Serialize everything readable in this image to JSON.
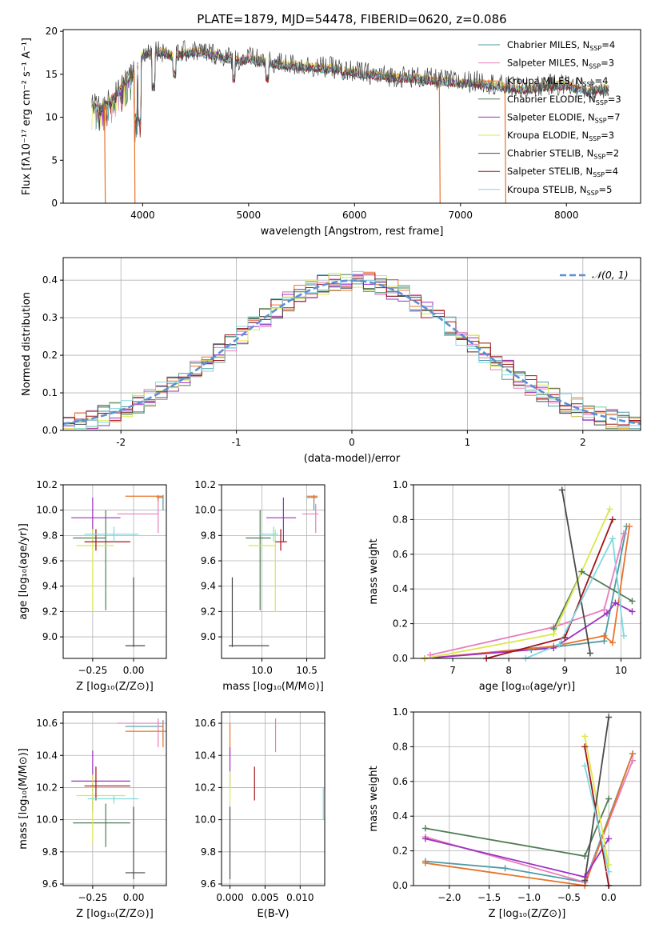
{
  "figure_title": "PLATE=1879, MJD=54478, FIBERID=0620, z=0.086",
  "colors": {
    "chabrier_miles": "#4d9ba6",
    "salpeter_miles": "#e87dbd",
    "kroupa_miles": "#e8732a",
    "chabrier_elodie": "#4f7d55",
    "salpeter_elodie": "#9b2fc2",
    "kroupa_elodie": "#dbe84a",
    "chabrier_stelib": "#4a4a4a",
    "salpeter_stelib": "#a1141b",
    "kroupa_stelib": "#7fd8e0",
    "gaussian": "#5b8fd6"
  },
  "chart_data": [
    {
      "id": "spectrum",
      "type": "line",
      "xlabel": "wavelength [Angstrom, rest frame]",
      "ylabel": "Flux [fλ10⁻¹⁷ erg cm⁻² s⁻¹ A⁻¹]",
      "xlim": [
        3250,
        8700
      ],
      "ylim": [
        0,
        20.2
      ],
      "xticks": [
        4000,
        5000,
        6000,
        7000,
        8000
      ],
      "yticks": [
        0,
        5,
        10,
        15,
        20
      ],
      "grid": false,
      "legend_position": "top-right",
      "legend": [
        {
          "name": "Chabrier MILES, N",
          "sub": "SSP",
          "suffix": "=4",
          "color": "chabrier_miles"
        },
        {
          "name": "Salpeter MILES, N",
          "sub": "SSP",
          "suffix": "=3",
          "color": "salpeter_miles"
        },
        {
          "name": "Kroupa MILES, N",
          "sub": "SSP",
          "suffix": "=4",
          "color": "kroupa_miles"
        },
        {
          "name": "Chabrier ELODIE, N",
          "sub": "SSP",
          "suffix": "=3",
          "color": "chabrier_elodie"
        },
        {
          "name": "Salpeter ELODIE, N",
          "sub": "SSP",
          "suffix": "=7",
          "color": "salpeter_elodie"
        },
        {
          "name": "Kroupa ELODIE, N",
          "sub": "SSP",
          "suffix": "=3",
          "color": "kroupa_elodie"
        },
        {
          "name": "Chabrier STELIB, N",
          "sub": "SSP",
          "suffix": "=2",
          "color": "chabrier_stelib"
        },
        {
          "name": "Salpeter STELIB, N",
          "sub": "SSP",
          "suffix": "=4",
          "color": "salpeter_stelib"
        },
        {
          "name": "Kroupa STELIB, N",
          "sub": "SSP",
          "suffix": "=5",
          "color": "kroupa_stelib"
        }
      ],
      "continuum": [
        [
          3520,
          11.5
        ],
        [
          3600,
          11.0
        ],
        [
          3700,
          12.0
        ],
        [
          3800,
          13.5
        ],
        [
          3900,
          15.0
        ],
        [
          3950,
          16.0
        ],
        [
          4000,
          17.2
        ],
        [
          4100,
          17.8
        ],
        [
          4200,
          17.5
        ],
        [
          4300,
          17.0
        ],
        [
          4400,
          17.5
        ],
        [
          4500,
          17.6
        ],
        [
          4700,
          17.2
        ],
        [
          4900,
          16.5
        ],
        [
          5000,
          16.8
        ],
        [
          5200,
          16.3
        ],
        [
          5400,
          16.0
        ],
        [
          5600,
          15.8
        ],
        [
          5800,
          15.6
        ],
        [
          6000,
          15.2
        ],
        [
          6200,
          14.8
        ],
        [
          6400,
          14.6
        ],
        [
          6600,
          14.5
        ],
        [
          6800,
          14.2
        ],
        [
          7000,
          14.0
        ],
        [
          7200,
          14.0
        ],
        [
          7400,
          13.5
        ],
        [
          7600,
          13.2
        ],
        [
          7800,
          13.6
        ],
        [
          8000,
          13.7
        ],
        [
          8200,
          13.0
        ],
        [
          8400,
          13.4
        ]
      ],
      "absorptions": [
        [
          3934,
          9.5
        ],
        [
          3969,
          9.0
        ],
        [
          4101,
          13.0
        ],
        [
          4300,
          14.5
        ],
        [
          4861,
          14.0
        ],
        [
          5175,
          14.0
        ],
        [
          5893,
          14.3
        ]
      ],
      "glitches": [
        [
          3640,
          0
        ],
        [
          3920,
          0
        ],
        [
          6800,
          0
        ],
        [
          7420,
          0
        ]
      ]
    },
    {
      "id": "residuals",
      "type": "step",
      "xlabel": "(data-model)/error",
      "ylabel": "Normed distribution",
      "xlim": [
        -2.5,
        2.5
      ],
      "ylim": [
        0,
        0.46
      ],
      "xticks": [
        -2,
        -1,
        0,
        1,
        2
      ],
      "yticks": [
        0.0,
        0.1,
        0.2,
        0.3,
        0.4
      ],
      "grid": true,
      "legend_position": "top-right",
      "legend_label": "𝒩(0, 1)",
      "bin_width": 0.1
    },
    {
      "id": "age_vs_Z",
      "type": "errorbar",
      "xlabel": "Z [log₁₀(Z/Z⊙)]",
      "ylabel": "age  [log₁₀(age/yr)]",
      "xlim": [
        -0.43,
        0.2
      ],
      "ylim": [
        8.83,
        10.2
      ],
      "xticks": [
        -0.25,
        0.0
      ],
      "xticklabels": [
        "−0.25",
        "0.00"
      ],
      "yticks": [
        9.0,
        9.2,
        9.4,
        9.6,
        9.8,
        10.0,
        10.2
      ],
      "grid": true,
      "points": [
        {
          "c": "chabrier_miles",
          "x": 0.18,
          "xl": 0.14,
          "xr": 0.18,
          "y": 10.1,
          "yl": 10.0,
          "yh": 10.12
        },
        {
          "c": "salpeter_miles",
          "x": 0.15,
          "xl": -0.1,
          "xr": 0.15,
          "y": 9.97,
          "yl": 9.82,
          "yh": 10.1
        },
        {
          "c": "kroupa_miles",
          "x": 0.15,
          "xl": -0.05,
          "xr": 0.18,
          "y": 10.11,
          "yl": 10.07,
          "yh": 10.12
        },
        {
          "c": "chabrier_elodie",
          "x": -0.17,
          "xl": -0.37,
          "xr": -0.17,
          "y": 9.78,
          "yl": 9.21,
          "yh": 10.0
        },
        {
          "c": "salpeter_elodie",
          "x": -0.25,
          "xl": -0.38,
          "xr": -0.08,
          "y": 9.94,
          "yl": 9.75,
          "yh": 10.1
        },
        {
          "c": "kroupa_elodie",
          "x": -0.25,
          "xl": -0.35,
          "xr": -0.12,
          "y": 9.72,
          "yl": 9.2,
          "yh": 9.85
        },
        {
          "c": "chabrier_stelib",
          "x": 0.0,
          "xl": -0.05,
          "xr": 0.07,
          "y": 8.93,
          "yl": 8.92,
          "yh": 9.47
        },
        {
          "c": "salpeter_stelib",
          "x": -0.23,
          "xl": -0.3,
          "xr": -0.02,
          "y": 9.75,
          "yl": 9.68,
          "yh": 9.85
        },
        {
          "c": "kroupa_stelib",
          "x": -0.12,
          "xl": -0.3,
          "xr": 0.03,
          "y": 9.81,
          "yl": 9.75,
          "yh": 9.87
        }
      ]
    },
    {
      "id": "age_vs_mass",
      "type": "errorbar",
      "xlabel": "mass [log₁₀(M/M⊙)]",
      "ylabel": "",
      "xlim": [
        9.55,
        10.7
      ],
      "ylim": [
        8.83,
        10.2
      ],
      "xticks": [
        10.0,
        10.5
      ],
      "xticklabels": [
        "10.0",
        "10.5"
      ],
      "yticks": [
        9.0,
        9.2,
        9.4,
        9.6,
        9.8,
        10.0,
        10.2
      ],
      "grid": true,
      "points": [
        {
          "c": "chabrier_miles",
          "x": 10.58,
          "xl": 10.5,
          "xr": 10.62,
          "y": 10.1,
          "yl": 10.0,
          "yh": 10.12
        },
        {
          "c": "salpeter_miles",
          "x": 10.6,
          "xl": 10.45,
          "xr": 10.63,
          "y": 9.97,
          "yl": 9.82,
          "yh": 10.05
        },
        {
          "c": "kroupa_miles",
          "x": 10.58,
          "xl": 10.5,
          "xr": 10.62,
          "y": 10.11,
          "yl": 10.07,
          "yh": 10.12
        },
        {
          "c": "chabrier_elodie",
          "x": 9.98,
          "xl": 9.82,
          "xr": 10.1,
          "y": 9.78,
          "yl": 9.21,
          "yh": 10.0
        },
        {
          "c": "salpeter_elodie",
          "x": 10.24,
          "xl": 10.05,
          "xr": 10.38,
          "y": 9.94,
          "yl": 9.75,
          "yh": 10.1
        },
        {
          "c": "kroupa_elodie",
          "x": 10.15,
          "xl": 9.85,
          "xr": 10.15,
          "y": 9.72,
          "yl": 9.2,
          "yh": 9.85
        },
        {
          "c": "chabrier_stelib",
          "x": 9.67,
          "xl": 9.63,
          "xr": 10.08,
          "y": 8.93,
          "yl": 8.92,
          "yh": 9.47
        },
        {
          "c": "salpeter_stelib",
          "x": 10.21,
          "xl": 10.15,
          "xr": 10.28,
          "y": 9.75,
          "yl": 9.68,
          "yh": 9.85
        },
        {
          "c": "kroupa_stelib",
          "x": 10.13,
          "xl": 9.98,
          "xr": 10.18,
          "y": 9.81,
          "yl": 9.75,
          "yh": 9.87
        }
      ]
    },
    {
      "id": "weight_vs_age",
      "type": "line",
      "xlabel": "age  [log₁₀(age/yr)]",
      "ylabel": "mass weight",
      "xlim": [
        6.3,
        10.35
      ],
      "ylim": [
        0,
        1.0
      ],
      "xticks": [
        7,
        8,
        9,
        10
      ],
      "yticks": [
        0.0,
        0.2,
        0.4,
        0.6,
        0.8,
        1.0
      ],
      "grid": true,
      "series": [
        {
          "c": "chabrier_miles",
          "x": [
            8.4,
            9.7,
            10.1
          ],
          "y": [
            0.05,
            0.1,
            0.76
          ]
        },
        {
          "c": "salpeter_miles",
          "x": [
            6.6,
            8.8,
            9.7,
            10.05
          ],
          "y": [
            0.02,
            0.18,
            0.28,
            0.72
          ]
        },
        {
          "c": "kroupa_miles",
          "x": [
            6.5,
            8.8,
            9.7,
            9.85,
            10.15
          ],
          "y": [
            0.0,
            0.07,
            0.13,
            0.09,
            0.76
          ]
        },
        {
          "c": "chabrier_elodie",
          "x": [
            8.8,
            9.3,
            10.2
          ],
          "y": [
            0.17,
            0.5,
            0.33
          ]
        },
        {
          "c": "salpeter_elodie",
          "x": [
            6.5,
            8.8,
            9.75,
            9.9,
            10.2
          ],
          "y": [
            0.0,
            0.06,
            0.26,
            0.32,
            0.27
          ]
        },
        {
          "c": "kroupa_elodie",
          "x": [
            6.5,
            8.8,
            9.8
          ],
          "y": [
            0.0,
            0.14,
            0.86
          ]
        },
        {
          "c": "chabrier_stelib",
          "x": [
            8.95,
            9.45
          ],
          "y": [
            0.97,
            0.03
          ]
        },
        {
          "c": "salpeter_stelib",
          "x": [
            7.6,
            9.0,
            9.85
          ],
          "y": [
            0.0,
            0.12,
            0.8
          ]
        },
        {
          "c": "kroupa_stelib",
          "x": [
            8.3,
            8.9,
            9.85,
            10.05
          ],
          "y": [
            0.0,
            0.08,
            0.69,
            0.13
          ]
        }
      ]
    },
    {
      "id": "mass_vs_Z",
      "type": "errorbar",
      "xlabel": "Z [log₁₀(Z/Z⊙)]",
      "ylabel": "mass [log₁₀(M/M⊙)]",
      "xlim": [
        -0.43,
        0.2
      ],
      "ylim": [
        9.59,
        10.67
      ],
      "xticks": [
        -0.25,
        0.0
      ],
      "xticklabels": [
        "−0.25",
        "0.00"
      ],
      "yticks": [
        9.6,
        9.8,
        10.0,
        10.2,
        10.4,
        10.6
      ],
      "grid": true,
      "points": [
        {
          "c": "chabrier_miles",
          "x": 0.18,
          "xl": -0.05,
          "xr": 0.18,
          "y": 10.58,
          "yl": 10.5,
          "yh": 10.62
        },
        {
          "c": "salpeter_miles",
          "x": 0.15,
          "xl": -0.1,
          "xr": 0.18,
          "y": 10.6,
          "yl": 10.45,
          "yh": 10.63
        },
        {
          "c": "kroupa_miles",
          "x": 0.18,
          "xl": -0.05,
          "xr": 0.2,
          "y": 10.55,
          "yl": 10.45,
          "yh": 10.6
        },
        {
          "c": "chabrier_elodie",
          "x": -0.17,
          "xl": -0.37,
          "xr": -0.02,
          "y": 9.98,
          "yl": 9.83,
          "yh": 10.1
        },
        {
          "c": "salpeter_elodie",
          "x": -0.25,
          "xl": -0.38,
          "xr": -0.02,
          "y": 10.24,
          "yl": 10.05,
          "yh": 10.43
        },
        {
          "c": "kroupa_elodie",
          "x": -0.25,
          "xl": -0.35,
          "xr": -0.05,
          "y": 10.15,
          "yl": 9.85,
          "yh": 10.28
        },
        {
          "c": "chabrier_stelib",
          "x": 0.0,
          "xl": -0.05,
          "xr": 0.07,
          "y": 9.67,
          "yl": 9.63,
          "yh": 10.08
        },
        {
          "c": "salpeter_stelib",
          "x": -0.23,
          "xl": -0.3,
          "xr": -0.02,
          "y": 10.21,
          "yl": 10.12,
          "yh": 10.33
        },
        {
          "c": "kroupa_stelib",
          "x": -0.12,
          "xl": -0.28,
          "xr": 0.03,
          "y": 10.13,
          "yl": 10.1,
          "yh": 10.15
        }
      ]
    },
    {
      "id": "mass_vs_ebv",
      "type": "errorbar",
      "xlabel": "E(B-V)",
      "ylabel": "",
      "xlim": [
        -0.0012,
        0.0135
      ],
      "ylim": [
        9.59,
        10.67
      ],
      "xticks": [
        0.0,
        0.005,
        0.01
      ],
      "xticklabels": [
        "0.000",
        "0.005",
        "0.010"
      ],
      "yticks": [
        9.6,
        9.8,
        10.0,
        10.2,
        10.4,
        10.6
      ],
      "grid": true,
      "points": [
        {
          "c": "kroupa_miles",
          "x": 0.0,
          "y": 10.58,
          "yl": 10.4,
          "yh": 10.6
        },
        {
          "c": "salpeter_miles",
          "x": 0.0065,
          "y": 10.5,
          "yl": 10.42,
          "yh": 10.63
        },
        {
          "c": "salpeter_elodie",
          "x": 0.0,
          "y": 10.3,
          "yl": 10.2,
          "yh": 10.45
        },
        {
          "c": "kroupa_elodie",
          "x": 0.0,
          "y": 10.2,
          "yl": 10.1,
          "yh": 10.3
        },
        {
          "c": "chabrier_stelib",
          "x": 0.0,
          "y": 9.9,
          "yl": 9.63,
          "yh": 10.08
        },
        {
          "c": "salpeter_stelib",
          "x": 0.0035,
          "y": 10.2,
          "yl": 10.12,
          "yh": 10.33
        },
        {
          "c": "kroupa_stelib",
          "x": 0.0133,
          "y": 10.1,
          "yl": 10.0,
          "yh": 10.2
        }
      ]
    },
    {
      "id": "weight_vs_Z",
      "type": "line",
      "xlabel": "Z [log₁₀(Z/Z⊙)]",
      "ylabel": "mass weight",
      "xlim": [
        -2.45,
        0.4
      ],
      "ylim": [
        0,
        1.0
      ],
      "xticks": [
        -2.0,
        -1.5,
        -1.0,
        -0.5,
        0.0
      ],
      "xticklabels": [
        "−2.0",
        "−1.5",
        "−1.0",
        "−0.5",
        "0.0"
      ],
      "yticks": [
        0.0,
        0.2,
        0.4,
        0.6,
        0.8,
        1.0
      ],
      "grid": true,
      "series": [
        {
          "c": "chabrier_miles",
          "x": [
            -2.3,
            -1.3,
            -0.3,
            0.3
          ],
          "y": [
            0.14,
            0.1,
            0.02,
            0.76
          ]
        },
        {
          "c": "salpeter_miles",
          "x": [
            -2.3,
            -0.3,
            0.3
          ],
          "y": [
            0.28,
            0.02,
            0.72
          ]
        },
        {
          "c": "kroupa_miles",
          "x": [
            -2.3,
            -0.3,
            0.3
          ],
          "y": [
            0.13,
            0.0,
            0.76
          ]
        },
        {
          "c": "chabrier_elodie",
          "x": [
            -2.3,
            -0.3,
            0.0
          ],
          "y": [
            0.33,
            0.17,
            0.5
          ]
        },
        {
          "c": "salpeter_elodie",
          "x": [
            -2.3,
            -0.3,
            0.0
          ],
          "y": [
            0.27,
            0.05,
            0.27
          ]
        },
        {
          "c": "kroupa_elodie",
          "x": [
            -0.3,
            0.0
          ],
          "y": [
            0.86,
            0.12
          ]
        },
        {
          "c": "chabrier_stelib",
          "x": [
            -0.3,
            0.0
          ],
          "y": [
            0.03,
            0.97
          ]
        },
        {
          "c": "salpeter_stelib",
          "x": [
            -0.3,
            0.0
          ],
          "y": [
            0.8,
            0.0
          ]
        },
        {
          "c": "kroupa_stelib",
          "x": [
            -0.3,
            0.0
          ],
          "y": [
            0.69,
            0.08
          ]
        }
      ]
    }
  ]
}
